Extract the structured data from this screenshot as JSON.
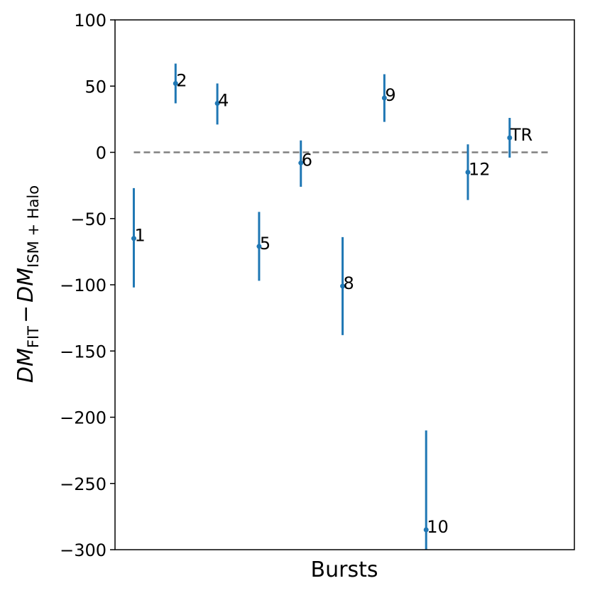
{
  "chart_data": {
    "type": "scatter",
    "xlabel": "Bursts",
    "ylabel": {
      "main1": "DM",
      "sub1": "FIT",
      "minus": "−",
      "main2": "DM",
      "sub2": "ISM + Halo"
    },
    "ylim": [
      -300,
      100
    ],
    "yticks": [
      100,
      50,
      0,
      -50,
      -100,
      -150,
      -200,
      -250,
      -300
    ],
    "ytick_labels": [
      "100",
      "50",
      "0",
      "−50",
      "−100",
      "−150",
      "−200",
      "−250",
      "−300"
    ],
    "xlim": [
      0.55,
      11.55
    ],
    "reference_line": {
      "y": 0,
      "style": "dashed",
      "color": "#808080"
    },
    "point_color": "#1f77b4",
    "points": [
      {
        "label": "1",
        "x": 1,
        "y": -65,
        "err_low": 37,
        "err_high": 38
      },
      {
        "label": "2",
        "x": 2,
        "y": 52,
        "err_low": 15,
        "err_high": 15
      },
      {
        "label": "4",
        "x": 3,
        "y": 37,
        "err_low": 16,
        "err_high": 15
      },
      {
        "label": "5",
        "x": 4,
        "y": -71,
        "err_low": 26,
        "err_high": 26
      },
      {
        "label": "6",
        "x": 5,
        "y": -8,
        "err_low": 18,
        "err_high": 17
      },
      {
        "label": "8",
        "x": 6,
        "y": -101,
        "err_low": 37,
        "err_high": 37
      },
      {
        "label": "9",
        "x": 7,
        "y": 41,
        "err_low": 18,
        "err_high": 18
      },
      {
        "label": "10",
        "x": 8,
        "y": -285,
        "err_low": 15,
        "err_high": 75
      },
      {
        "label": "12",
        "x": 9,
        "y": -15,
        "err_low": 21,
        "err_high": 21
      },
      {
        "label": "TR",
        "x": 10,
        "y": 11,
        "err_low": 15,
        "err_high": 15
      }
    ]
  }
}
